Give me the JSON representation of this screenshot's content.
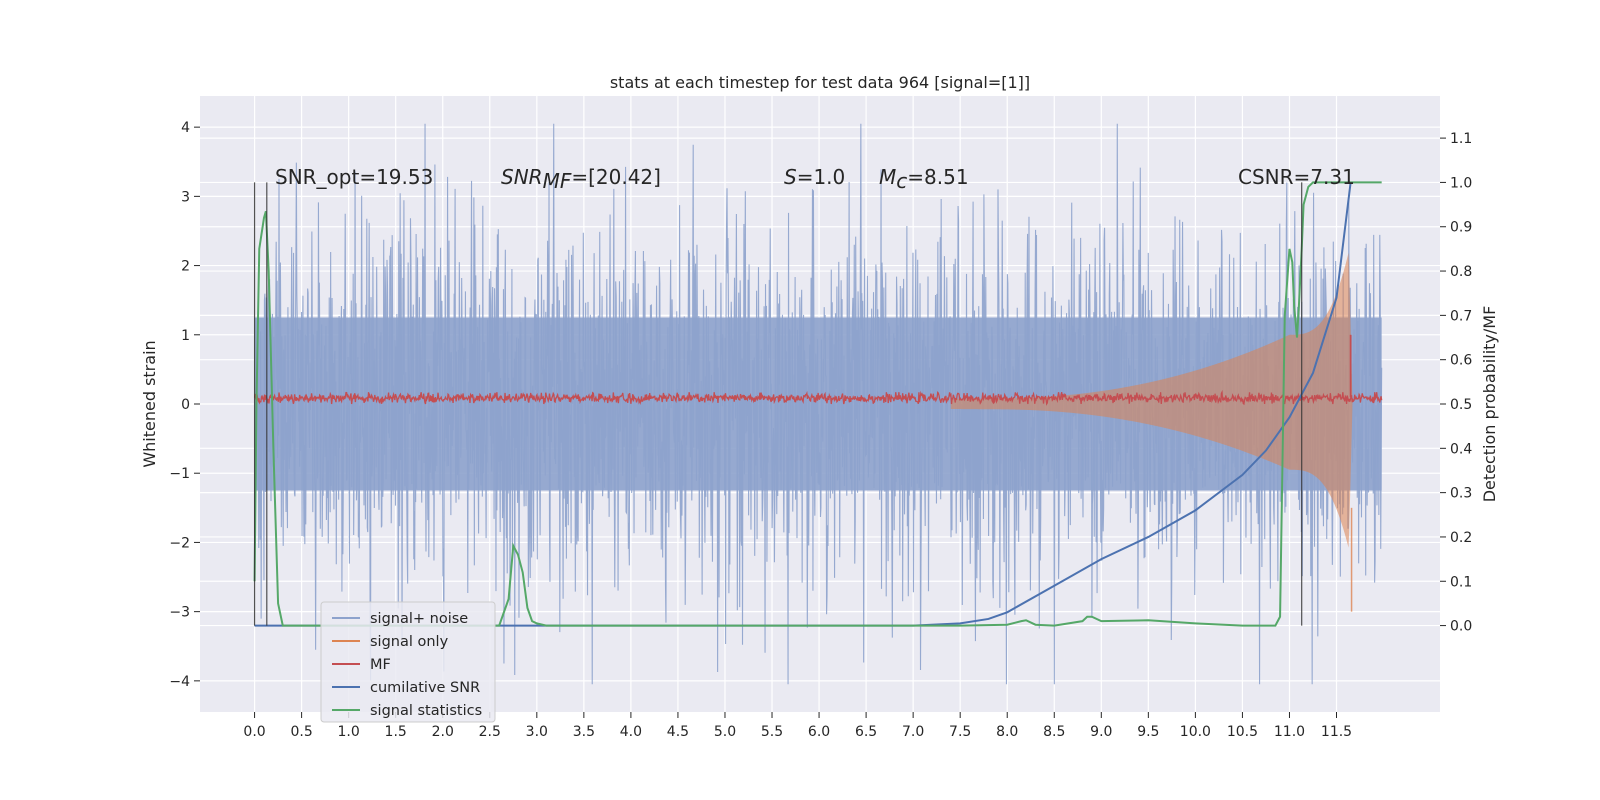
{
  "chart_data": {
    "type": "line",
    "title": "stats at each timestep for test data 964 [signal=[1]]",
    "ylabel_left": "Whitened strain",
    "ylabel_right": "Detection probability/MF",
    "xlim": [
      -0.58,
      12.6
    ],
    "ylim_left": [
      -4.45,
      4.45
    ],
    "ylim_right": [
      -0.195,
      1.195
    ],
    "x_ticks": [
      "0.0",
      "0.5",
      "1.0",
      "1.5",
      "2.0",
      "2.5",
      "3.0",
      "3.5",
      "4.0",
      "4.5",
      "5.0",
      "5.5",
      "6.0",
      "6.5",
      "7.0",
      "7.5",
      "8.0",
      "8.5",
      "9.0",
      "9.5",
      "10.0",
      "10.5",
      "11.0",
      "11.5"
    ],
    "y_left_ticks": [
      "4",
      "3",
      "2",
      "1",
      "0",
      "−1",
      "−2",
      "−3",
      "−4"
    ],
    "y_right_ticks": [
      "1.1",
      "1.0",
      "0.9",
      "0.8",
      "0.7",
      "0.6",
      "0.5",
      "0.4",
      "0.3",
      "0.2",
      "0.1",
      "0.0"
    ],
    "annotations": {
      "snr_opt": "SNR_opt=19.53",
      "snr_mf_name": "SNR",
      "snr_mf_sub": "MF",
      "snr_mf_value": "=[20.42]",
      "s_name": "S",
      "s_value": "=1.0",
      "mc_name": "M",
      "mc_sub": "c",
      "mc_value": "=8.51",
      "csnr": "CSNR=7.31"
    },
    "vertical_markers": [
      0.0,
      0.13,
      11.13
    ],
    "series": [
      {
        "name": "signal+ noise",
        "color": "#8da2cc",
        "envelope": {
          "x_start": 0.0,
          "x_end": 11.98,
          "typical_amplitude": 1.25,
          "peak_amplitude": 4.05
        }
      },
      {
        "name": "signal only",
        "color": "#dd8452",
        "envelope": {
          "x_start": 0.0,
          "x_end": 11.98,
          "amplitude_at_start": 0.0,
          "amplitude_at_7.8": 0.08,
          "amplitude_at_11.0": 1.0,
          "peak_at_11.63": 2.2
        }
      },
      {
        "name": "MF",
        "color": "#c44e52",
        "y_range": [
          0.0,
          0.17
        ],
        "spike_at_11.65": 1.0
      },
      {
        "name": "cumilative SNR",
        "color": "#4c72b0",
        "x": [
          0,
          7.0,
          7.5,
          7.8,
          8.0,
          8.5,
          9.0,
          9.5,
          10.0,
          10.5,
          10.75,
          11.0,
          11.25,
          11.5,
          11.65
        ],
        "y": [
          0,
          0.0,
          0.005,
          0.015,
          0.03,
          0.09,
          0.15,
          0.2,
          0.26,
          0.34,
          0.395,
          0.47,
          0.57,
          0.74,
          1.0
        ]
      },
      {
        "name": "signal statistics",
        "color": "#55a868",
        "x": [
          0,
          0.02,
          0.05,
          0.1,
          0.12,
          0.15,
          0.2,
          0.25,
          0.3,
          0.35,
          2.6,
          2.7,
          2.75,
          2.8,
          2.85,
          2.9,
          2.95,
          3.0,
          3.1,
          5.0,
          7.5,
          8.0,
          8.15,
          8.2,
          8.3,
          8.5,
          8.8,
          8.85,
          8.9,
          9.0,
          9.5,
          10.0,
          10.5,
          10.85,
          10.9,
          10.95,
          11.0,
          11.03,
          11.05,
          11.08,
          11.1,
          11.13,
          11.15,
          11.2,
          11.25,
          11.3,
          11.98
        ],
        "y": [
          0.1,
          0.5,
          0.85,
          0.92,
          0.935,
          0.8,
          0.4,
          0.05,
          0.0,
          0.0,
          0.0,
          0.06,
          0.18,
          0.16,
          0.12,
          0.04,
          0.01,
          0.005,
          0.0,
          0.0,
          0.0,
          0.002,
          0.01,
          0.012,
          0.002,
          0.0,
          0.01,
          0.02,
          0.02,
          0.01,
          0.012,
          0.005,
          0.0,
          0.0,
          0.02,
          0.7,
          0.85,
          0.82,
          0.72,
          0.65,
          0.72,
          0.85,
          0.95,
          0.99,
          1.0,
          1.0,
          1.0
        ]
      }
    ]
  }
}
